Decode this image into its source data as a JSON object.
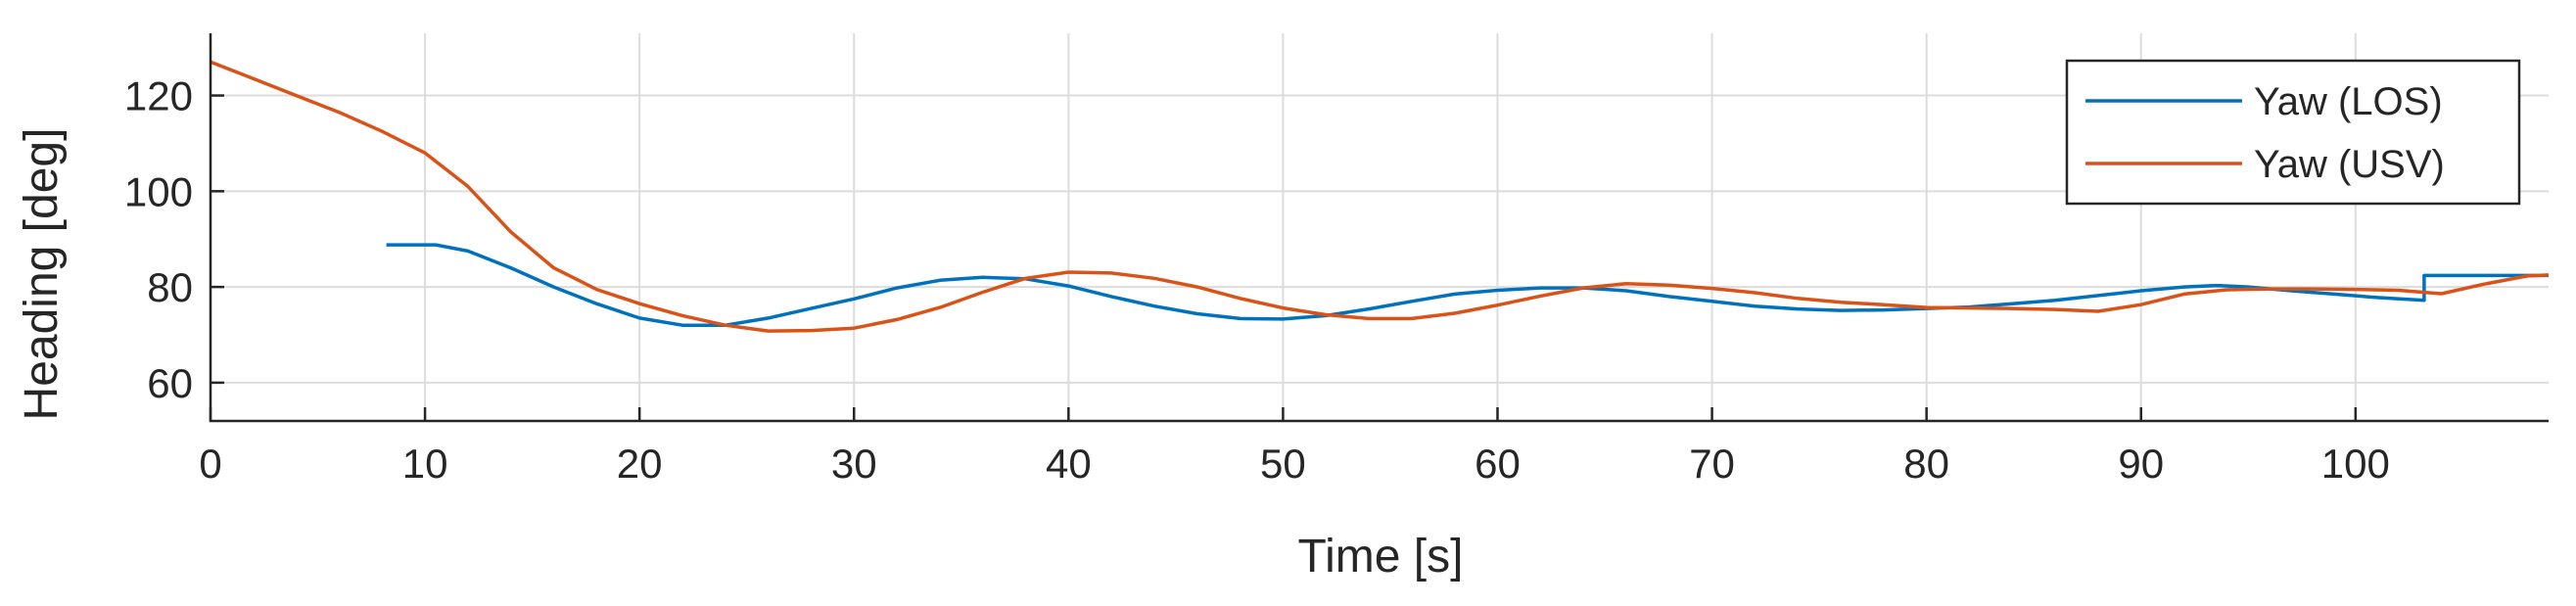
{
  "chart_data": {
    "type": "line",
    "xlabel": "Time [s]",
    "ylabel": "Heading [deg]",
    "xlim": [
      0,
      109
    ],
    "ylim": [
      52,
      133
    ],
    "xticks": [
      0,
      10,
      20,
      30,
      40,
      50,
      60,
      70,
      80,
      90,
      100
    ],
    "yticks": [
      60,
      80,
      100,
      120
    ],
    "grid": true,
    "legend_position": "top-right",
    "series": [
      {
        "name": "Yaw (LOS)",
        "color": "#0072BD",
        "x": [
          8.2,
          10.5,
          12,
          14,
          16,
          18,
          20,
          22,
          24,
          26,
          28,
          30,
          32,
          34,
          36,
          38,
          40,
          42,
          44,
          46,
          48,
          50,
          52,
          54,
          56,
          58,
          60,
          62,
          64,
          66,
          68,
          70,
          72,
          74,
          76,
          78,
          80,
          82,
          84,
          86,
          88,
          90,
          92,
          93.5,
          95,
          97,
          99,
          101,
          103.2,
          103.2,
          106,
          109
        ],
        "y": [
          88.8,
          88.8,
          87.5,
          84,
          80,
          76.5,
          73.5,
          72,
          72,
          73.5,
          75.5,
          77.5,
          79.8,
          81.4,
          82,
          81.7,
          80.2,
          78,
          76,
          74.4,
          73.4,
          73.3,
          74,
          75.4,
          77,
          78.5,
          79.3,
          79.8,
          79.8,
          79.2,
          78,
          77,
          76,
          75.4,
          75.1,
          75.2,
          75.5,
          75.8,
          76.5,
          77.2,
          78.2,
          79.2,
          80,
          80.3,
          80,
          79.2,
          78.5,
          77.8,
          77.2,
          82.4,
          82.4,
          82.4
        ]
      },
      {
        "name": "Yaw (USV)",
        "color": "#D95319",
        "x": [
          0,
          2,
          4,
          6,
          8,
          10,
          12,
          14,
          16,
          18,
          20,
          22,
          24,
          26,
          28,
          30,
          32,
          34,
          36,
          38,
          40,
          42,
          44,
          46,
          48,
          50,
          52,
          54,
          56,
          58,
          60,
          62,
          64,
          66,
          68,
          70,
          72,
          74,
          76,
          78,
          80,
          82,
          84,
          86,
          88,
          90,
          92,
          94,
          96,
          98,
          100,
          102,
          104,
          106,
          108,
          109
        ],
        "y": [
          127,
          123.5,
          120,
          116.5,
          112.5,
          108,
          101,
          91.5,
          84,
          79.5,
          76.5,
          74,
          72,
          70.8,
          70.9,
          71.4,
          73.2,
          75.7,
          78.9,
          81.8,
          83.1,
          82.9,
          81.8,
          80,
          77.6,
          75.6,
          74.2,
          73.4,
          73.4,
          74.5,
          76.2,
          78.1,
          79.8,
          80.7,
          80.4,
          79.7,
          78.8,
          77.6,
          76.8,
          76.3,
          75.7,
          75.6,
          75.5,
          75.3,
          74.9,
          76.3,
          78.5,
          79.4,
          79.6,
          79.6,
          79.5,
          79.3,
          78.6,
          80.6,
          82.3,
          82.5
        ]
      }
    ]
  }
}
